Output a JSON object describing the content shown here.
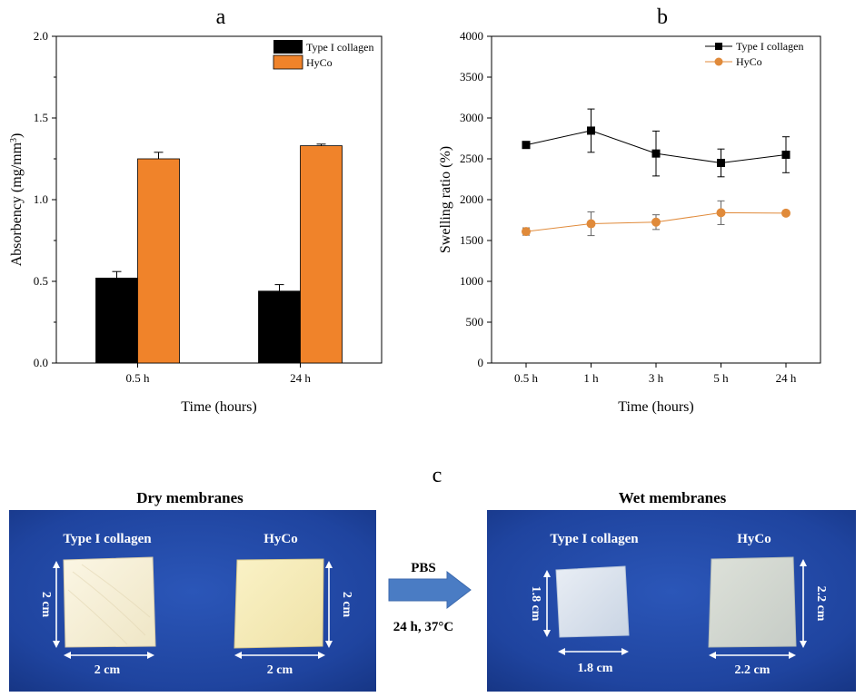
{
  "panel_labels": {
    "a": "a",
    "b": "b",
    "c": "c"
  },
  "chart_data": [
    {
      "type": "bar",
      "panel": "a",
      "categories": [
        "0.5 h",
        "24 h"
      ],
      "series": [
        {
          "name": "Type I collagen",
          "color": "#000000",
          "values": [
            0.52,
            0.44
          ],
          "errors": [
            0.04,
            0.04
          ]
        },
        {
          "name": "HyCo",
          "color": "#f0832a",
          "values": [
            1.25,
            1.33
          ],
          "errors": [
            0.04,
            0.01
          ]
        }
      ],
      "xlabel": "Time (hours)",
      "ylabel": "Absorbency (mg/mm",
      "ylabel_sup": "3",
      "ylabel_end": ")",
      "ylim": [
        0,
        2.0
      ],
      "yticks": [
        0.0,
        0.5,
        1.0,
        1.5,
        2.0
      ],
      "ytick_labels": [
        "0.0",
        "0.5",
        "1.0",
        "1.5",
        "2.0"
      ],
      "legend_position": "top-right",
      "grid": false
    },
    {
      "type": "line",
      "panel": "b",
      "categories": [
        "0.5 h",
        "1 h",
        "3 h",
        "5 h",
        "24 h"
      ],
      "series": [
        {
          "name": "Type I collagen",
          "color": "#000000",
          "marker": "square",
          "values": [
            2670,
            2845,
            2565,
            2450,
            2550
          ],
          "errors": [
            30,
            265,
            275,
            170,
            220
          ]
        },
        {
          "name": "HyCo",
          "color": "#e08a3a",
          "marker": "circle",
          "values": [
            1610,
            1705,
            1725,
            1840,
            1835
          ],
          "errors": [
            45,
            145,
            90,
            145,
            30
          ]
        }
      ],
      "xlabel": "Time (hours)",
      "ylabel": "Swelling ratio (%)",
      "ylim": [
        0,
        4000
      ],
      "yticks": [
        0,
        500,
        1000,
        1500,
        2000,
        2500,
        3000,
        3500,
        4000
      ],
      "ytick_labels": [
        "0",
        "500",
        "1000",
        "1500",
        "2000",
        "2500",
        "3000",
        "3500",
        "4000"
      ],
      "legend_position": "top-right",
      "grid": false
    }
  ],
  "photos": {
    "dry_title": "Dry membranes",
    "wet_title": "Wet membranes",
    "dry": {
      "collagen_label": "Type I collagen",
      "hyco_label": "HyCo",
      "collagen_height": "2 cm",
      "collagen_width": "2 cm",
      "hyco_height": "2 cm",
      "hyco_width": "2 cm"
    },
    "wet": {
      "collagen_label": "Type I collagen",
      "hyco_label": "HyCo",
      "collagen_height": "1.8 cm",
      "collagen_width": "1.8 cm",
      "hyco_height": "2.2 cm",
      "hyco_width": "2.2 cm"
    },
    "arrow_top": "PBS",
    "arrow_bottom": "24 h, 37°C",
    "colors": {
      "background": "#1e3f9a",
      "arrow": "#4a7cc4",
      "dry_membrane": "#f6f0d8",
      "wet_membrane": "#dfe6ef"
    }
  }
}
